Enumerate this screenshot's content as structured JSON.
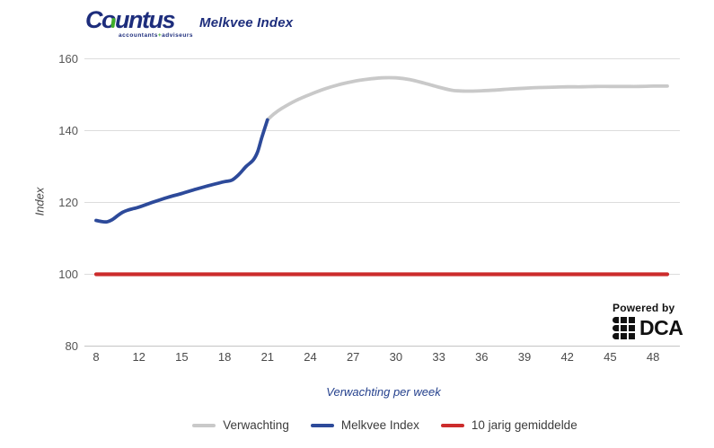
{
  "header": {
    "logo_text": "Countus",
    "logo_tagline_left": "accountants",
    "logo_tagline_sep": "+",
    "logo_tagline_right": "adviseurs",
    "title": "Melkvee Index"
  },
  "powered_by": {
    "label": "Powered by",
    "brand": "DCA"
  },
  "colors": {
    "navy": "#1d2d7c",
    "green": "#3fae2a",
    "grid": "#dcdcdc",
    "baseline": "#c4c4c4",
    "tick_label": "#555555",
    "verwachting": "#c9c9c9",
    "melkvee": "#2d4a9a",
    "gemiddelde": "#cc2c2c"
  },
  "chart_data": {
    "type": "line",
    "title": "Melkvee Index",
    "xlabel": "Verwachting per week",
    "ylabel": "Index",
    "xlim": [
      8,
      49
    ],
    "ylim": [
      80,
      160
    ],
    "grid": true,
    "legend_position": "bottom",
    "x_ticks": [
      "8",
      "12",
      "15",
      "18",
      "21",
      "24",
      "27",
      "30",
      "33",
      "36",
      "39",
      "42",
      "45",
      "48"
    ],
    "y_ticks": [
      160,
      140,
      120,
      100,
      80
    ],
    "series": [
      {
        "name": "Verwachting",
        "color_key": "verwachting",
        "points": [
          [
            21,
            143
          ],
          [
            21.5,
            144.8
          ],
          [
            22,
            146.2
          ],
          [
            23,
            148.4
          ],
          [
            24,
            150.1
          ],
          [
            25,
            151.6
          ],
          [
            26,
            152.8
          ],
          [
            27,
            153.7
          ],
          [
            28,
            154.3
          ],
          [
            29,
            154.7
          ],
          [
            30,
            154.7
          ],
          [
            31,
            154.2
          ],
          [
            32,
            153.2
          ],
          [
            33,
            152.1
          ],
          [
            34,
            151.2
          ],
          [
            35,
            151
          ],
          [
            36,
            151.1
          ],
          [
            37,
            151.3
          ],
          [
            38,
            151.6
          ],
          [
            39,
            151.8
          ],
          [
            40,
            152
          ],
          [
            41,
            152.1
          ],
          [
            42,
            152.2
          ],
          [
            43,
            152.2
          ],
          [
            44,
            152.3
          ],
          [
            45,
            152.3
          ],
          [
            46,
            152.3
          ],
          [
            47,
            152.3
          ],
          [
            48,
            152.4
          ],
          [
            49,
            152.4
          ]
        ]
      },
      {
        "name": "Melkvee Index",
        "color_key": "melkvee",
        "points": [
          [
            8,
            115
          ],
          [
            8.5,
            114.7
          ],
          [
            9,
            114.6
          ],
          [
            9.5,
            115.2
          ],
          [
            10,
            116.3
          ],
          [
            10.5,
            117.3
          ],
          [
            11,
            117.9
          ],
          [
            11.5,
            118.3
          ],
          [
            12,
            118.7
          ],
          [
            13,
            120.1
          ],
          [
            14,
            121.4
          ],
          [
            15,
            122.5
          ],
          [
            16,
            123.7
          ],
          [
            17,
            124.8
          ],
          [
            18,
            125.8
          ],
          [
            18.5,
            126.2
          ],
          [
            19,
            127.8
          ],
          [
            19.5,
            130
          ],
          [
            20,
            131.8
          ],
          [
            20.3,
            134
          ],
          [
            20.6,
            138
          ],
          [
            21,
            143
          ]
        ]
      },
      {
        "name": "10 jarig gemiddelde",
        "color_key": "gemiddelde",
        "points": [
          [
            8,
            100
          ],
          [
            49,
            100
          ]
        ]
      }
    ]
  }
}
